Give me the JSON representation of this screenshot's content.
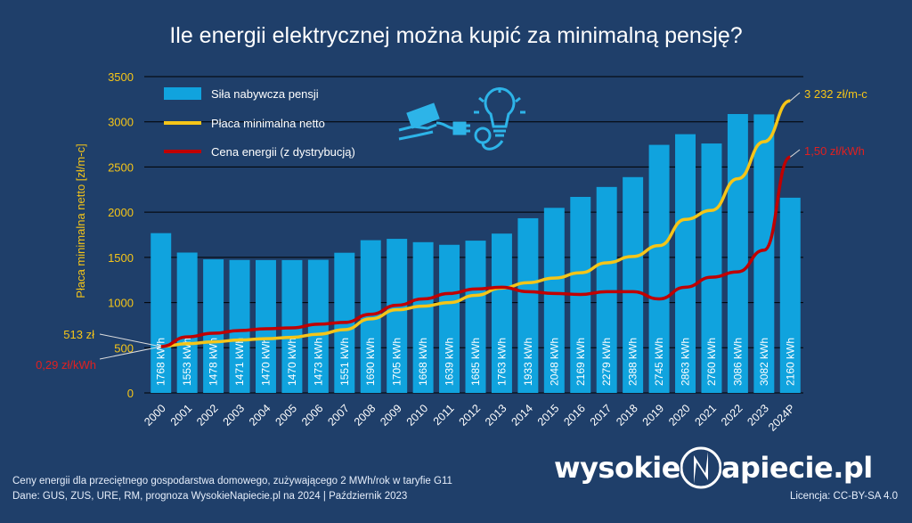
{
  "title": "Ile energii elektrycznej można kupić za minimalną pensję?",
  "footer": {
    "note1": "Ceny energii dla przeciętnego gospodarstwa domowego, zużywającego 2 MWh/rok w taryfie G11",
    "note2": "Dane: GUS, ZUS, URE, RM, prognoza WysokieNapiecie.pl na 2024   |   Październik 2023",
    "license": "Licencja: CC-BY-SA 4.0"
  },
  "logo": {
    "left": "wysokie",
    "right": "apiecie.pl"
  },
  "colors": {
    "background": "#1f3f6a",
    "bars": "#10a3de",
    "wage_line": "#f5c518",
    "price_line": "#c00000",
    "axis_text": "#f5c518"
  },
  "icons": [
    "money-hand-icon",
    "plug-icon",
    "lightbulb-icon"
  ],
  "chart_data": {
    "type": "bar",
    "categories": [
      "2000",
      "2001",
      "2002",
      "2003",
      "2004",
      "2005",
      "2006",
      "2007",
      "2008",
      "2009",
      "2010",
      "2011",
      "2012",
      "2013",
      "2014",
      "2015",
      "2016",
      "2017",
      "2018",
      "2019",
      "2020",
      "2021",
      "2022",
      "2023",
      "2024P"
    ],
    "series": [
      {
        "name": "Siła nabywcza pensji",
        "type": "bar",
        "values": [
          1768,
          1553,
          1478,
          1471,
          1470,
          1470,
          1473,
          1551,
          1690,
          1705,
          1668,
          1639,
          1685,
          1763,
          1933,
          2048,
          2169,
          2279,
          2388,
          2745,
          2863,
          2760,
          3086,
          3082,
          2160
        ],
        "labels": [
          "1768 kWh",
          "1553 kWh",
          "1478 kWh",
          "1471 kWh",
          "1470 kWh",
          "1470 kWh",
          "1473 kWh",
          "1551 kWh",
          "1690 kWh",
          "1705 kWh",
          "1668 kWh",
          "1639 kWh",
          "1685 kWh",
          "1763 kWh",
          "1933 kWh",
          "2048 kWh",
          "2169 kWh",
          "2279 kWh",
          "2388 kWh",
          "2745 kWh",
          "2863 kWh",
          "2760 kWh",
          "3086 kWh",
          "3082 kWh",
          "2160 kWh"
        ]
      },
      {
        "name": "Płaca minimalna netto",
        "type": "line",
        "values": [
          513,
          545,
          565,
          585,
          600,
          615,
          650,
          700,
          820,
          920,
          960,
          1000,
          1080,
          1160,
          1220,
          1270,
          1330,
          1440,
          1510,
          1630,
          1920,
          2020,
          2370,
          2780,
          3232
        ]
      },
      {
        "name": "Cena energii (z dystrybucją)",
        "type": "line",
        "values": [
          513,
          620,
          660,
          690,
          710,
          720,
          760,
          780,
          870,
          970,
          1040,
          1100,
          1150,
          1170,
          1120,
          1100,
          1090,
          1120,
          1120,
          1040,
          1170,
          1280,
          1340,
          1580,
          2610
        ]
      }
    ],
    "annotations": {
      "wage_start": "513 zł",
      "price_start": "0,29 zł/kWh",
      "wage_end": "3 232 zł/m-c",
      "price_end": "1,50 zł/kWh"
    },
    "ylabel": "Płaca minimalna netto [zł/m-c]",
    "xlabel": "",
    "ylim": [
      0,
      3500
    ],
    "yticks": [
      0,
      500,
      1000,
      1500,
      2000,
      2500,
      3000,
      3500
    ],
    "grid": true,
    "legend_position": "top-left"
  }
}
